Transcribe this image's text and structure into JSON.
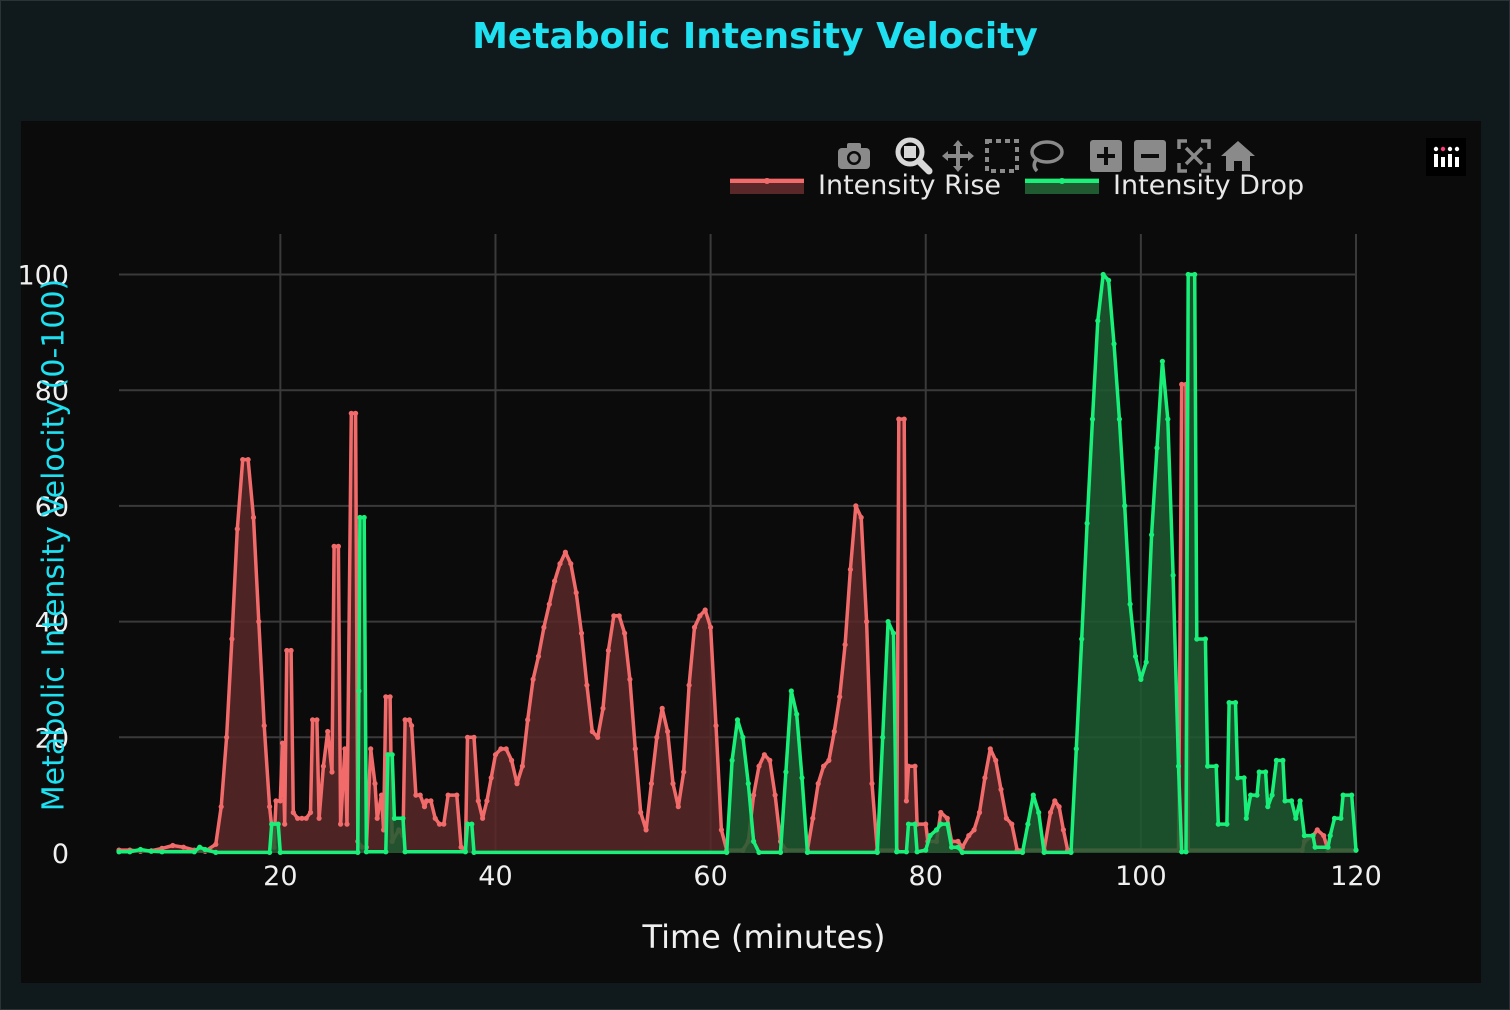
{
  "title": "Metabolic Intensity Velocity",
  "modebar": {
    "icons": [
      "camera-icon",
      "zoom-icon",
      "pan-icon",
      "box-select-icon",
      "lasso-select-icon",
      "zoom-in-icon",
      "zoom-out-icon",
      "autoscale-icon",
      "reset-axes-icon"
    ],
    "logo_icon": "plotly-logo-icon"
  },
  "colors": {
    "rise": "#f26b6b",
    "rise_fill": "#5a2828",
    "drop": "#19f07a",
    "drop_fill": "#1f5a30",
    "grid": "#3a3a3a",
    "title": "#1ee0f0"
  },
  "chart_data": {
    "type": "area",
    "title": "Metabolic Intensity Velocity",
    "xlabel": "Time (minutes)",
    "ylabel": "Metabolic Intensity Velocity (0-100)",
    "xlim": [
      5,
      120
    ],
    "ylim": [
      0,
      107
    ],
    "xticks": [
      20,
      40,
      60,
      80,
      100,
      120
    ],
    "yticks": [
      0,
      20,
      40,
      60,
      80,
      100
    ],
    "legend_position": "top-right",
    "series": [
      {
        "name": "Intensity Rise",
        "points": [
          [
            5,
            0.5
          ],
          [
            6,
            0.5
          ],
          [
            7,
            0.3
          ],
          [
            8,
            0.4
          ],
          [
            9,
            0.8
          ],
          [
            10,
            1.3
          ],
          [
            11,
            1.0
          ],
          [
            12,
            0.5
          ],
          [
            13,
            0.3
          ],
          [
            14,
            1.5
          ],
          [
            14.5,
            8
          ],
          [
            15,
            20
          ],
          [
            15.5,
            37
          ],
          [
            16,
            56
          ],
          [
            16.5,
            68
          ],
          [
            17,
            68
          ],
          [
            17.5,
            58
          ],
          [
            18,
            40
          ],
          [
            18.5,
            22
          ],
          [
            19,
            8
          ],
          [
            19.4,
            1
          ],
          [
            19.6,
            9
          ],
          [
            20,
            9
          ],
          [
            20.2,
            19
          ],
          [
            20.4,
            5
          ],
          [
            20.6,
            35
          ],
          [
            21,
            35
          ],
          [
            21.2,
            7
          ],
          [
            21.6,
            6
          ],
          [
            22,
            6
          ],
          [
            22.4,
            6
          ],
          [
            22.8,
            7
          ],
          [
            23,
            23
          ],
          [
            23.4,
            23
          ],
          [
            23.6,
            6
          ],
          [
            24,
            15
          ],
          [
            24.4,
            21
          ],
          [
            24.8,
            14
          ],
          [
            25,
            53
          ],
          [
            25.4,
            53
          ],
          [
            25.6,
            5
          ],
          [
            26,
            18
          ],
          [
            26.2,
            5
          ],
          [
            26.6,
            76
          ],
          [
            27,
            76
          ],
          [
            27.2,
            2
          ],
          [
            27.6,
            1
          ],
          [
            28,
            1
          ],
          [
            28.4,
            18
          ],
          [
            28.8,
            12
          ],
          [
            29,
            6
          ],
          [
            29.4,
            10
          ],
          [
            29.6,
            4
          ],
          [
            29.8,
            27
          ],
          [
            30.2,
            27
          ],
          [
            30.4,
            2
          ],
          [
            31,
            4
          ],
          [
            31.4,
            3
          ],
          [
            31.6,
            23
          ],
          [
            32,
            23
          ],
          [
            32.2,
            22
          ],
          [
            32.6,
            10
          ],
          [
            33,
            10
          ],
          [
            33.4,
            8
          ],
          [
            33.6,
            9
          ],
          [
            34,
            9
          ],
          [
            34.4,
            6
          ],
          [
            34.8,
            5
          ],
          [
            35.2,
            5
          ],
          [
            35.6,
            10
          ],
          [
            36.4,
            10
          ],
          [
            36.8,
            1
          ],
          [
            37.2,
            0.5
          ],
          [
            37.4,
            20
          ],
          [
            38,
            20
          ],
          [
            38.4,
            9
          ],
          [
            38.8,
            6
          ],
          [
            39.2,
            9
          ],
          [
            39.6,
            13
          ],
          [
            40,
            17
          ],
          [
            40.5,
            18
          ],
          [
            41,
            18
          ],
          [
            41.5,
            16
          ],
          [
            42,
            12
          ],
          [
            42.5,
            15
          ],
          [
            43,
            23
          ],
          [
            43.5,
            30
          ],
          [
            44,
            34
          ],
          [
            44.5,
            39
          ],
          [
            45,
            43
          ],
          [
            45.5,
            47
          ],
          [
            46,
            50
          ],
          [
            46.5,
            52
          ],
          [
            47,
            50
          ],
          [
            47.5,
            45
          ],
          [
            48,
            38
          ],
          [
            48.5,
            29
          ],
          [
            49,
            21
          ],
          [
            49.5,
            20
          ],
          [
            50,
            25
          ],
          [
            50.5,
            35
          ],
          [
            51,
            41
          ],
          [
            51.5,
            41
          ],
          [
            52,
            38
          ],
          [
            52.5,
            30
          ],
          [
            53,
            18
          ],
          [
            53.5,
            7
          ],
          [
            54,
            4
          ],
          [
            54.5,
            12
          ],
          [
            55,
            20
          ],
          [
            55.5,
            25
          ],
          [
            56,
            21
          ],
          [
            56.5,
            12
          ],
          [
            57,
            8
          ],
          [
            57.5,
            14
          ],
          [
            58,
            29
          ],
          [
            58.5,
            39
          ],
          [
            59,
            41
          ],
          [
            59.5,
            42
          ],
          [
            60,
            39
          ],
          [
            60.5,
            22
          ],
          [
            61,
            4
          ],
          [
            61.5,
            0.5
          ],
          [
            63,
            0.5
          ],
          [
            63.5,
            2
          ],
          [
            64,
            10
          ],
          [
            64.5,
            15
          ],
          [
            65,
            17
          ],
          [
            65.5,
            16
          ],
          [
            66,
            10
          ],
          [
            66.5,
            2
          ],
          [
            67,
            0.5
          ],
          [
            69,
            0.5
          ],
          [
            69.5,
            6
          ],
          [
            70,
            12
          ],
          [
            70.5,
            15
          ],
          [
            71,
            16
          ],
          [
            71.5,
            21
          ],
          [
            72,
            27
          ],
          [
            72.5,
            36
          ],
          [
            73,
            49
          ],
          [
            73.5,
            60
          ],
          [
            74,
            58
          ],
          [
            74.5,
            40
          ],
          [
            75,
            12
          ],
          [
            75.5,
            0.5
          ],
          [
            77.3,
            0.5
          ],
          [
            77.5,
            75
          ],
          [
            78,
            75
          ],
          [
            78.2,
            9
          ],
          [
            78.4,
            15
          ],
          [
            79,
            15
          ],
          [
            79.2,
            5
          ],
          [
            80,
            5
          ],
          [
            80.2,
            2
          ],
          [
            81,
            2
          ],
          [
            81.4,
            7
          ],
          [
            82,
            6
          ],
          [
            82.4,
            2
          ],
          [
            83,
            2
          ],
          [
            83.4,
            1
          ],
          [
            84,
            3
          ],
          [
            84.5,
            4
          ],
          [
            85,
            7
          ],
          [
            85.5,
            13
          ],
          [
            86,
            18
          ],
          [
            86.5,
            16
          ],
          [
            87,
            11
          ],
          [
            87.5,
            6
          ],
          [
            88,
            5
          ],
          [
            88.5,
            0.5
          ],
          [
            91,
            0.5
          ],
          [
            91.6,
            7
          ],
          [
            92,
            9
          ],
          [
            92.4,
            8
          ],
          [
            92.8,
            4
          ],
          [
            93.2,
            0.5
          ],
          [
            103.5,
            0.5
          ],
          [
            103.8,
            81
          ],
          [
            104.2,
            81
          ],
          [
            104.4,
            0.5
          ],
          [
            115,
            0.5
          ],
          [
            115.2,
            2
          ],
          [
            116,
            3
          ],
          [
            116.4,
            4
          ],
          [
            117,
            3
          ],
          [
            117.4,
            0.5
          ],
          [
            120,
            0.5
          ]
        ]
      },
      {
        "name": "Intensity Drop",
        "points": [
          [
            5,
            0.2
          ],
          [
            6,
            0.2
          ],
          [
            7,
            0.6
          ],
          [
            8,
            0.3
          ],
          [
            9,
            0.2
          ],
          [
            12,
            0.2
          ],
          [
            12.5,
            1
          ],
          [
            13,
            0.6
          ],
          [
            14,
            0.1
          ],
          [
            19,
            0.1
          ],
          [
            19.2,
            5
          ],
          [
            19.8,
            5
          ],
          [
            20,
            0.1
          ],
          [
            27.2,
            0.1
          ],
          [
            27.3,
            28
          ],
          [
            27.4,
            58
          ],
          [
            27.8,
            58
          ],
          [
            28,
            0.2
          ],
          [
            29.8,
            0.2
          ],
          [
            30,
            17
          ],
          [
            30.4,
            17
          ],
          [
            30.6,
            6
          ],
          [
            31.4,
            6
          ],
          [
            31.6,
            0.2
          ],
          [
            37.2,
            0.2
          ],
          [
            37.4,
            5
          ],
          [
            37.8,
            5
          ],
          [
            38,
            0.1
          ],
          [
            61.5,
            0.1
          ],
          [
            62,
            16
          ],
          [
            62.5,
            23
          ],
          [
            63,
            20
          ],
          [
            63.5,
            12
          ],
          [
            64,
            2
          ],
          [
            64.5,
            0.1
          ],
          [
            66.5,
            0.1
          ],
          [
            67,
            14
          ],
          [
            67.5,
            28
          ],
          [
            68,
            24
          ],
          [
            68.5,
            13
          ],
          [
            69,
            0.1
          ],
          [
            75.5,
            0.1
          ],
          [
            76,
            20
          ],
          [
            76.5,
            40
          ],
          [
            77,
            38
          ],
          [
            77.3,
            0.2
          ],
          [
            78.2,
            0.2
          ],
          [
            78.4,
            5
          ],
          [
            79,
            5
          ],
          [
            79.2,
            0.2
          ],
          [
            80,
            0.5
          ],
          [
            80.4,
            3
          ],
          [
            81,
            4
          ],
          [
            81.4,
            5
          ],
          [
            82,
            5
          ],
          [
            82.4,
            1
          ],
          [
            83,
            1
          ],
          [
            83.4,
            0.1
          ],
          [
            89,
            0.1
          ],
          [
            89.5,
            5
          ],
          [
            90,
            10
          ],
          [
            90.5,
            7
          ],
          [
            91,
            0.1
          ],
          [
            93.5,
            0.1
          ],
          [
            94,
            18
          ],
          [
            94.5,
            37
          ],
          [
            95,
            57
          ],
          [
            95.5,
            75
          ],
          [
            96,
            92
          ],
          [
            96.5,
            100
          ],
          [
            97,
            99
          ],
          [
            97.5,
            88
          ],
          [
            98,
            75
          ],
          [
            98.5,
            60
          ],
          [
            99,
            43
          ],
          [
            99.5,
            34
          ],
          [
            100,
            30
          ],
          [
            100.5,
            33
          ],
          [
            101,
            55
          ],
          [
            101.5,
            70
          ],
          [
            102,
            85
          ],
          [
            102.5,
            75
          ],
          [
            103,
            48
          ],
          [
            103.5,
            15
          ],
          [
            103.8,
            0.2
          ],
          [
            104.2,
            0.2
          ],
          [
            104.4,
            100
          ],
          [
            105,
            100
          ],
          [
            105.2,
            37
          ],
          [
            106,
            37
          ],
          [
            106.2,
            15
          ],
          [
            107,
            15
          ],
          [
            107.2,
            5
          ],
          [
            108,
            5
          ],
          [
            108.2,
            26
          ],
          [
            108.8,
            26
          ],
          [
            109,
            13
          ],
          [
            109.6,
            13
          ],
          [
            109.8,
            6
          ],
          [
            110.2,
            10
          ],
          [
            110.8,
            10
          ],
          [
            111,
            14
          ],
          [
            111.6,
            14
          ],
          [
            111.8,
            8
          ],
          [
            112.2,
            10
          ],
          [
            112.6,
            16
          ],
          [
            113.2,
            16
          ],
          [
            113.4,
            9
          ],
          [
            114,
            9
          ],
          [
            114.4,
            6
          ],
          [
            114.8,
            9
          ],
          [
            115.2,
            3
          ],
          [
            116,
            3
          ],
          [
            116.2,
            1
          ],
          [
            117.4,
            1
          ],
          [
            117.6,
            3
          ],
          [
            118,
            6
          ],
          [
            118.6,
            6
          ],
          [
            118.8,
            10
          ],
          [
            119.6,
            10
          ],
          [
            120,
            0.5
          ]
        ]
      }
    ]
  }
}
